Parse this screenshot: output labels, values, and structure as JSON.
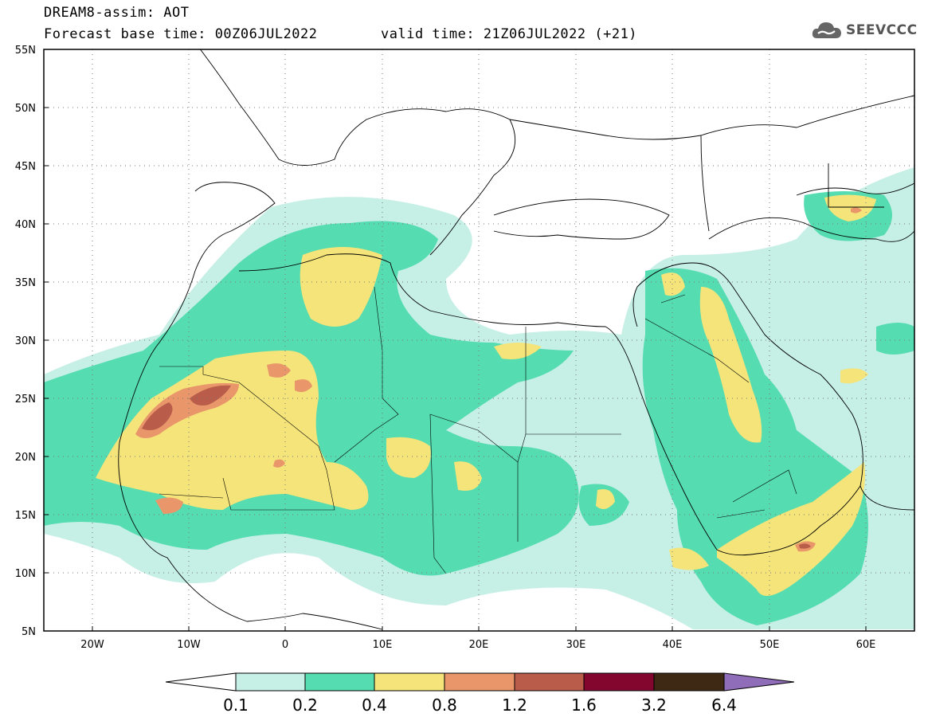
{
  "header": {
    "title_line1": "DREAM8-assim: AOT",
    "title_line2": "Forecast base time: 00Z06JUL2022",
    "valid_time": "valid time: 21Z06JUL2022 (+21)"
  },
  "logo": {
    "text": "SEEVCCC",
    "icon": "cloud-icon"
  },
  "map": {
    "lat_labels": [
      "55N",
      "50N",
      "45N",
      "40N",
      "35N",
      "30N",
      "25N",
      "20N",
      "15N",
      "10N",
      "5N"
    ],
    "lon_labels": [
      "20W",
      "10W",
      "0",
      "10E",
      "20E",
      "30E",
      "40E",
      "50E",
      "60E"
    ],
    "lat_range": [
      5,
      55
    ],
    "lon_range": [
      -25,
      65
    ],
    "grid": "dotted"
  },
  "colorbar": {
    "colors": {
      "c1": "#c6efe6",
      "c2": "#55dcb1",
      "c3": "#f4e47a",
      "c4": "#e9966a",
      "c5": "#b95c4a",
      "c6": "#82062e",
      "c7": "#3e2a14",
      "c8": "#8f6db8",
      "under": "#ffffff"
    },
    "labels": [
      "0.1",
      "0.2",
      "0.4",
      "0.8",
      "1.2",
      "1.6",
      "3.2",
      "6.4"
    ]
  }
}
